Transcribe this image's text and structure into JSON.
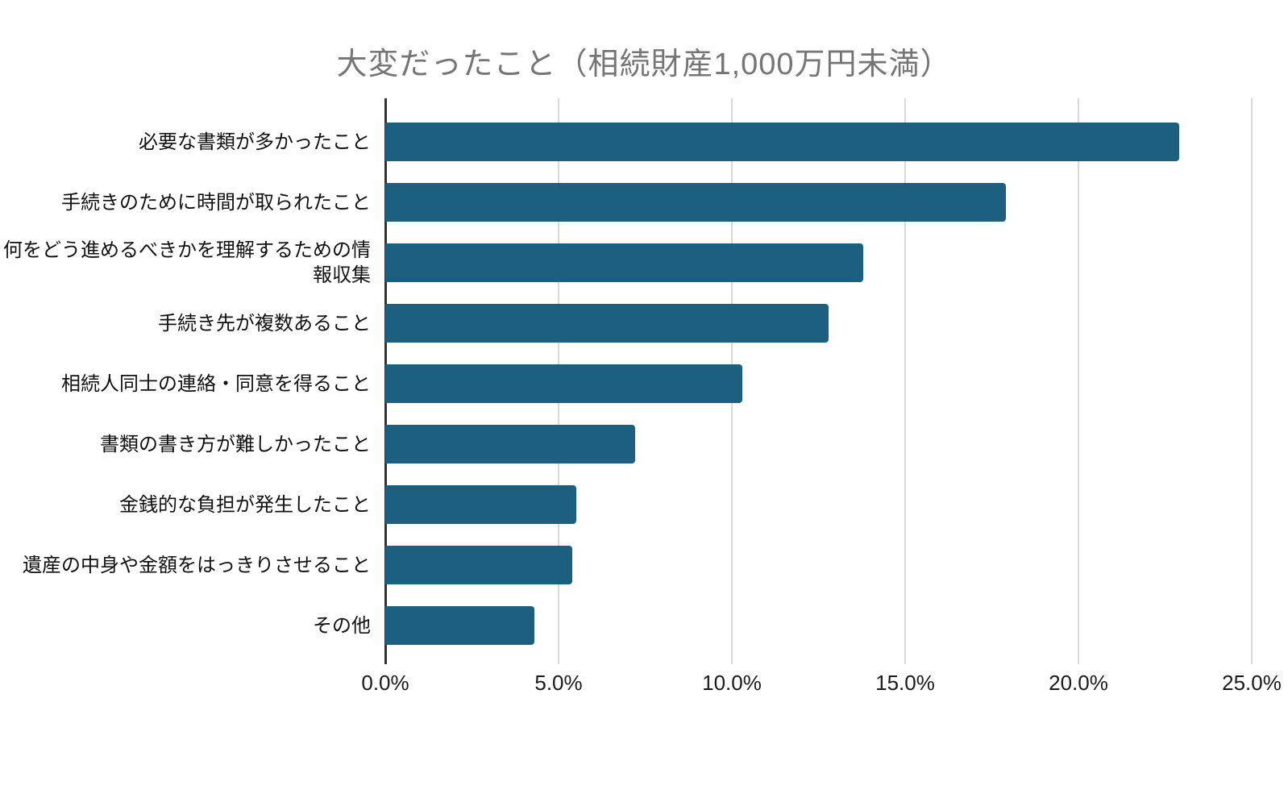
{
  "chart_data": {
    "type": "bar",
    "orientation": "horizontal",
    "title": "大変だったこと（相続財産1,000万円未満）",
    "categories": [
      "必要な書類が多かったこと",
      "手続きのために時間が取られたこと",
      "何をどう進めるべきかを理解するための情報収集",
      "手続き先が複数あること",
      "相続人同士の連絡・同意を得ること",
      "書類の書き方が難しかったこと",
      "金銭的な負担が発生したこと",
      "遺産の中身や金額をはっきりさせること",
      "その他"
    ],
    "values": [
      22.9,
      17.9,
      13.8,
      12.8,
      10.3,
      7.2,
      5.5,
      5.4,
      4.3
    ],
    "unit": "%",
    "xlabel": "",
    "ylabel": "",
    "xlim": [
      0,
      25
    ],
    "x_tick_values": [
      0,
      5,
      10,
      15,
      20,
      25
    ],
    "x_tick_labels": [
      "0.0%",
      "5.0%",
      "10.0%",
      "15.0%",
      "20.0%",
      "25.0%"
    ],
    "grid": true,
    "legend": "none",
    "data_labels": false,
    "colors": {
      "bar": "#1c5f7f",
      "gridline": "#d9d9d9",
      "axis_line": "#333333",
      "title_text": "#757575",
      "label_text": "#111111"
    }
  }
}
